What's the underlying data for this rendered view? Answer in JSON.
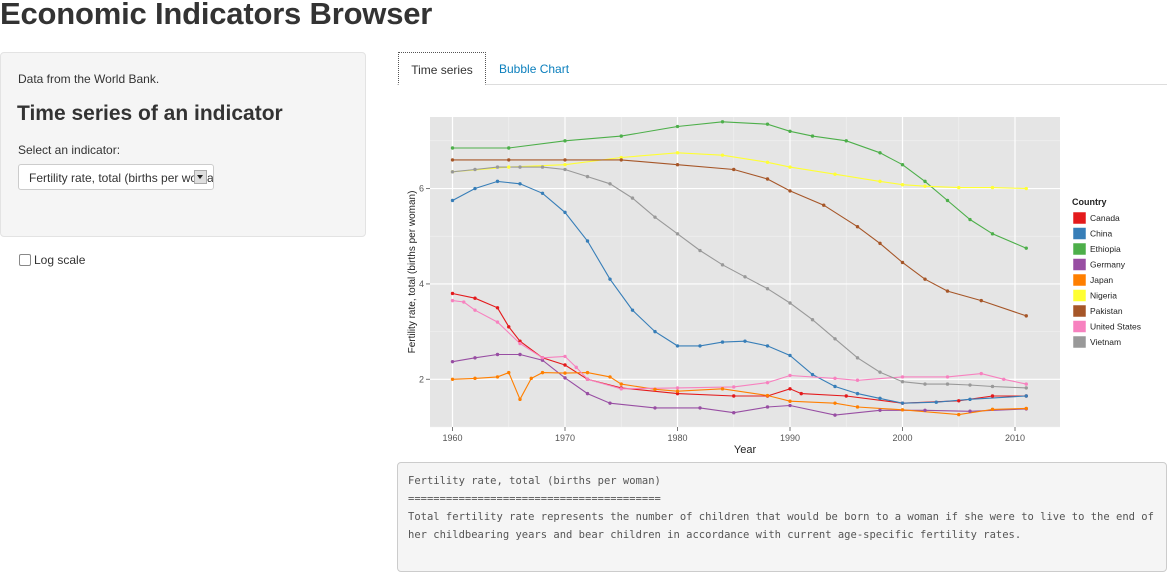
{
  "app": {
    "title": "Economic Indicators Browser"
  },
  "sidebar": {
    "source_text": "Data from the World Bank.",
    "heading": "Time series of an indicator",
    "select_label": "Select an indicator:",
    "select_value": "Fertility rate, total (births per woman)",
    "log_scale_label": "Log scale",
    "log_scale_checked": false
  },
  "tabs": [
    {
      "label": "Time series",
      "active": true
    },
    {
      "label": "Bubble Chart",
      "active": false
    }
  ],
  "description": {
    "title": "Fertility rate, total (births per woman)",
    "underline": "========================================",
    "body": "Total fertility rate represents the number of children that would be born to a woman if she were to live to the end of her childbearing years and bear children in accordance with current age-specific fertility rates."
  },
  "colors": {
    "panel_bg": "#e5e5e5",
    "grid": "#ffffff",
    "Canada": "#e41a1c",
    "China": "#377eb8",
    "Ethiopia": "#4daf4a",
    "Germany": "#984ea3",
    "Japan": "#ff7f00",
    "Nigeria": "#ffff33",
    "Pakistan": "#a65628",
    "United States": "#f781bf",
    "Vietnam": "#999999"
  },
  "chart_data": {
    "type": "line",
    "xlabel": "Year",
    "ylabel": "Fertility rate, total (births per woman)",
    "xlim": [
      1958,
      2014
    ],
    "ylim": [
      1.0,
      7.5
    ],
    "x_ticks": [
      1960,
      1970,
      1980,
      1990,
      2000,
      2010
    ],
    "y_ticks": [
      2,
      4,
      6
    ],
    "grid": true,
    "legend_title": "Country",
    "legend_position": "right",
    "series": [
      {
        "name": "Canada",
        "x": [
          1960,
          1962,
          1964,
          1965,
          1966,
          1968,
          1970,
          1972,
          1975,
          1980,
          1985,
          1988,
          1990,
          1991,
          1995,
          2000,
          2005,
          2008,
          2011
        ],
        "values": [
          3.8,
          3.7,
          3.5,
          3.1,
          2.8,
          2.45,
          2.3,
          2.0,
          1.82,
          1.7,
          1.65,
          1.65,
          1.8,
          1.7,
          1.65,
          1.5,
          1.55,
          1.65,
          1.65
        ]
      },
      {
        "name": "China",
        "x": [
          1960,
          1962,
          1964,
          1966,
          1968,
          1970,
          1972,
          1974,
          1976,
          1978,
          1980,
          1982,
          1984,
          1986,
          1988,
          1990,
          1992,
          1994,
          1996,
          1998,
          2000,
          2003,
          2006,
          2011
        ],
        "values": [
          5.75,
          6.0,
          6.15,
          6.1,
          5.9,
          5.5,
          4.9,
          4.1,
          3.45,
          3.0,
          2.7,
          2.7,
          2.78,
          2.8,
          2.7,
          2.5,
          2.1,
          1.85,
          1.7,
          1.6,
          1.5,
          1.52,
          1.58,
          1.65
        ]
      },
      {
        "name": "Ethiopia",
        "x": [
          1960,
          1965,
          1970,
          1975,
          1980,
          1984,
          1988,
          1990,
          1992,
          1995,
          1998,
          2000,
          2002,
          2004,
          2006,
          2008,
          2011
        ],
        "values": [
          6.85,
          6.85,
          7.0,
          7.1,
          7.3,
          7.4,
          7.35,
          7.2,
          7.1,
          7.0,
          6.75,
          6.5,
          6.15,
          5.75,
          5.35,
          5.05,
          4.75
        ]
      },
      {
        "name": "Germany",
        "x": [
          1960,
          1962,
          1964,
          1966,
          1968,
          1970,
          1972,
          1974,
          1978,
          1982,
          1985,
          1988,
          1990,
          1994,
          1998,
          2002,
          2006,
          2011
        ],
        "values": [
          2.37,
          2.45,
          2.52,
          2.52,
          2.4,
          2.03,
          1.7,
          1.5,
          1.4,
          1.4,
          1.3,
          1.42,
          1.45,
          1.25,
          1.35,
          1.35,
          1.33,
          1.38
        ]
      },
      {
        "name": "Japan",
        "x": [
          1960,
          1962,
          1964,
          1965,
          1966,
          1967,
          1968,
          1970,
          1972,
          1974,
          1975,
          1978,
          1980,
          1984,
          1988,
          1990,
          1994,
          1996,
          2000,
          2005,
          2008,
          2011
        ],
        "values": [
          2.0,
          2.02,
          2.05,
          2.14,
          1.58,
          2.02,
          2.14,
          2.13,
          2.14,
          2.05,
          1.9,
          1.79,
          1.75,
          1.8,
          1.66,
          1.54,
          1.5,
          1.42,
          1.36,
          1.26,
          1.37,
          1.39
        ]
      },
      {
        "name": "Nigeria",
        "x": [
          1960,
          1965,
          1970,
          1975,
          1980,
          1984,
          1988,
          1990,
          1994,
          1998,
          2000,
          2002,
          2005,
          2008,
          2011
        ],
        "values": [
          6.35,
          6.45,
          6.5,
          6.65,
          6.75,
          6.7,
          6.55,
          6.45,
          6.3,
          6.15,
          6.08,
          6.05,
          6.02,
          6.02,
          6.0
        ]
      },
      {
        "name": "Pakistan",
        "x": [
          1960,
          1965,
          1970,
          1975,
          1980,
          1985,
          1988,
          1990,
          1993,
          1996,
          1998,
          2000,
          2002,
          2004,
          2007,
          2011
        ],
        "values": [
          6.6,
          6.6,
          6.6,
          6.6,
          6.5,
          6.4,
          6.2,
          5.95,
          5.65,
          5.2,
          4.85,
          4.45,
          4.1,
          3.85,
          3.65,
          3.33
        ]
      },
      {
        "name": "United States",
        "x": [
          1960,
          1961,
          1962,
          1964,
          1966,
          1968,
          1970,
          1971,
          1972,
          1975,
          1980,
          1985,
          1988,
          1990,
          1994,
          1996,
          2000,
          2004,
          2007,
          2009,
          2011
        ],
        "values": [
          3.65,
          3.62,
          3.45,
          3.2,
          2.75,
          2.45,
          2.48,
          2.25,
          2.0,
          1.8,
          1.82,
          1.84,
          1.93,
          2.08,
          2.02,
          1.98,
          2.05,
          2.05,
          2.12,
          2.0,
          1.9
        ]
      },
      {
        "name": "Vietnam",
        "x": [
          1960,
          1962,
          1964,
          1966,
          1968,
          1970,
          1972,
          1974,
          1976,
          1978,
          1980,
          1982,
          1984,
          1986,
          1988,
          1990,
          1992,
          1994,
          1996,
          1998,
          2000,
          2002,
          2004,
          2006,
          2008,
          2011
        ],
        "values": [
          6.35,
          6.4,
          6.45,
          6.45,
          6.45,
          6.4,
          6.25,
          6.1,
          5.8,
          5.4,
          5.05,
          4.7,
          4.4,
          4.15,
          3.9,
          3.6,
          3.25,
          2.85,
          2.45,
          2.15,
          1.95,
          1.9,
          1.9,
          1.88,
          1.85,
          1.82
        ]
      }
    ]
  }
}
